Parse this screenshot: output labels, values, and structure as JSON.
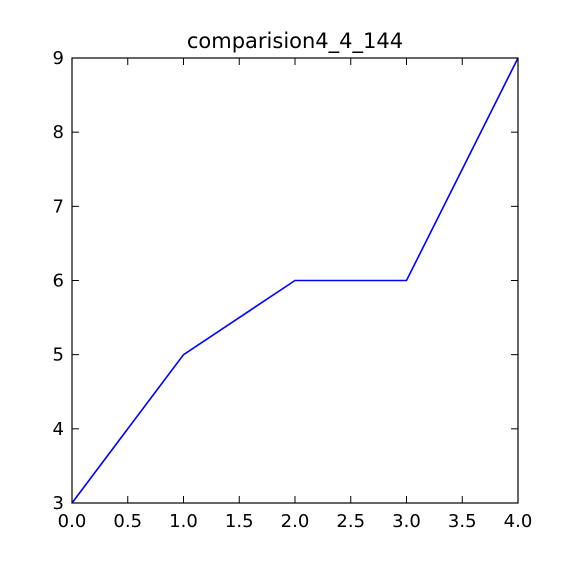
{
  "chart_data": {
    "type": "line",
    "title": "comparision4_4_144",
    "xlabel": "",
    "ylabel": "",
    "xlim": [
      0,
      4
    ],
    "ylim": [
      3,
      9
    ],
    "x_ticks": [
      0.0,
      0.5,
      1.0,
      1.5,
      2.0,
      2.5,
      3.0,
      3.5,
      4.0
    ],
    "x_tick_labels": [
      "0.0",
      "0.5",
      "1.0",
      "1.5",
      "2.0",
      "2.5",
      "3.0",
      "3.5",
      "4.0"
    ],
    "y_ticks": [
      3,
      4,
      5,
      6,
      7,
      8,
      9
    ],
    "y_tick_labels": [
      "3",
      "4",
      "5",
      "6",
      "7",
      "8",
      "9"
    ],
    "grid": false,
    "series": [
      {
        "color": "#0000ff",
        "x": [
          0,
          1,
          2,
          3,
          4
        ],
        "y": [
          3,
          5,
          6,
          6,
          9
        ]
      }
    ]
  }
}
